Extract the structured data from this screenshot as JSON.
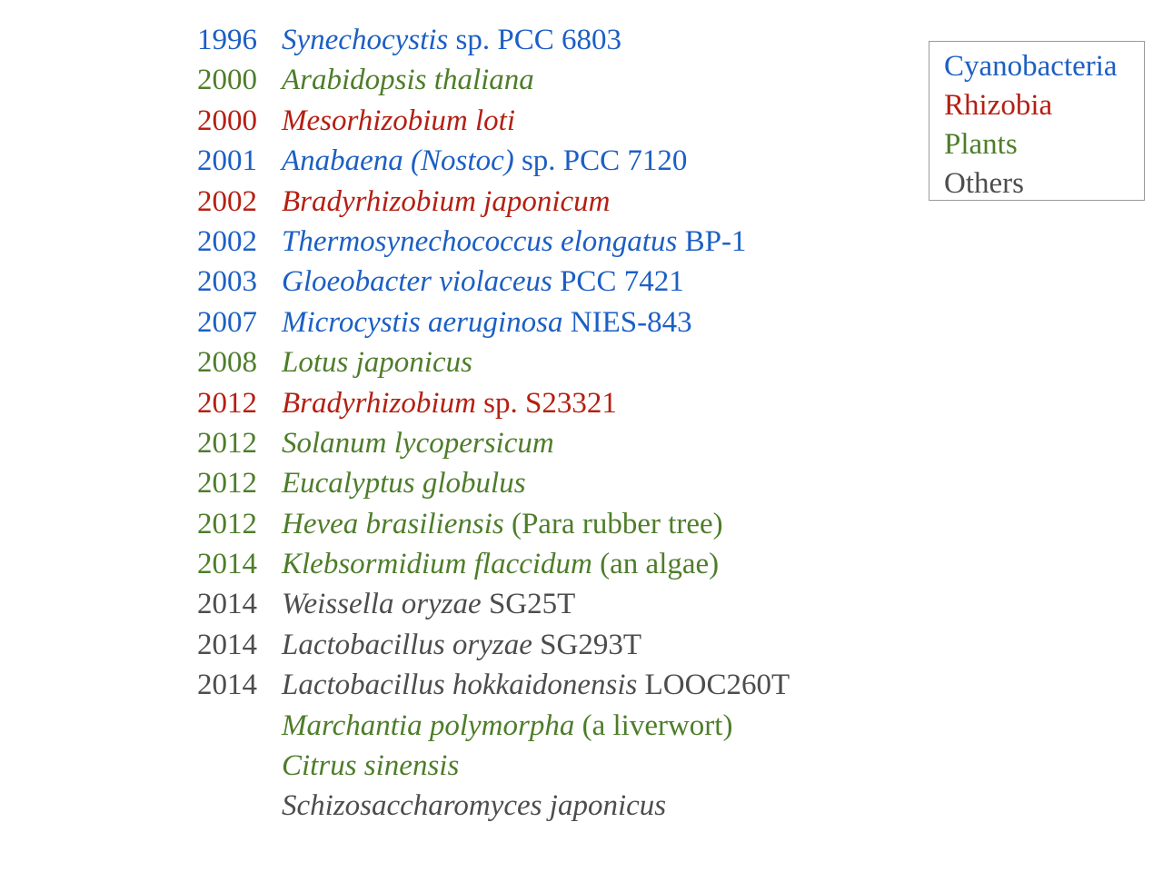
{
  "colors": {
    "cyanobacteria": "#1c5fc4",
    "rhizobia": "#b51f12",
    "plants": "#4e7d2a",
    "others": "#4d4d4d"
  },
  "legend": [
    {
      "label": "Cyanobacteria",
      "group": "cyanobacteria"
    },
    {
      "label": "Rhizobia",
      "group": "rhizobia"
    },
    {
      "label": "Plants",
      "group": "plants"
    },
    {
      "label": "Others",
      "group": "others"
    }
  ],
  "entries": [
    {
      "year": "1996",
      "group": "cyanobacteria",
      "parts": [
        {
          "t": "Synechocystis",
          "i": true
        },
        {
          "t": " sp. PCC 6803",
          "i": false
        }
      ]
    },
    {
      "year": "2000",
      "group": "plants",
      "parts": [
        {
          "t": "Arabidopsis thaliana",
          "i": true
        }
      ]
    },
    {
      "year": "2000",
      "group": "rhizobia",
      "parts": [
        {
          "t": "Mesorhizobium loti",
          "i": true
        }
      ]
    },
    {
      "year": "2001",
      "group": "cyanobacteria",
      "parts": [
        {
          "t": "Anabaena (Nostoc)",
          "i": true
        },
        {
          "t": " sp. PCC 7120",
          "i": false
        }
      ]
    },
    {
      "year": "2002",
      "group": "rhizobia",
      "parts": [
        {
          "t": "Bradyrhizobium japonicum",
          "i": true
        }
      ]
    },
    {
      "year": "2002",
      "group": "cyanobacteria",
      "parts": [
        {
          "t": "Thermosynechococcus elongatus",
          "i": true
        },
        {
          "t": " BP-1",
          "i": false
        }
      ]
    },
    {
      "year": "2003",
      "group": "cyanobacteria",
      "parts": [
        {
          "t": "Gloeobacter violaceus",
          "i": true
        },
        {
          "t": " PCC 7421",
          "i": false
        }
      ]
    },
    {
      "year": "2007",
      "group": "cyanobacteria",
      "parts": [
        {
          "t": "Microcystis aeruginosa",
          "i": true
        },
        {
          "t": " NIES-843",
          "i": false
        }
      ]
    },
    {
      "year": "2008",
      "group": "plants",
      "parts": [
        {
          "t": "Lotus japonicus",
          "i": true
        }
      ]
    },
    {
      "year": "2012",
      "group": "rhizobia",
      "parts": [
        {
          "t": "Bradyrhizobium",
          "i": true
        },
        {
          "t": " sp. S23321",
          "i": false
        }
      ]
    },
    {
      "year": "2012",
      "group": "plants",
      "parts": [
        {
          "t": "Solanum lycopersicum",
          "i": true
        }
      ]
    },
    {
      "year": "2012",
      "group": "plants",
      "parts": [
        {
          "t": "Eucalyptus globulus",
          "i": true
        }
      ]
    },
    {
      "year": "2012",
      "group": "plants",
      "parts": [
        {
          "t": "Hevea brasiliensis",
          "i": true
        },
        {
          "t": " (Para rubber tree)",
          "i": false
        }
      ]
    },
    {
      "year": "2014",
      "group": "plants",
      "parts": [
        {
          "t": "Klebsormidium flaccidum",
          "i": true
        },
        {
          "t": " (an algae)",
          "i": false
        }
      ]
    },
    {
      "year": "2014",
      "group": "others",
      "parts": [
        {
          "t": "Weissella oryzae",
          "i": true
        },
        {
          "t": " SG25T",
          "i": false
        }
      ]
    },
    {
      "year": "2014",
      "group": "others",
      "parts": [
        {
          "t": "Lactobacillus oryzae",
          "i": true
        },
        {
          "t": " SG293T",
          "i": false
        }
      ]
    },
    {
      "year": "2014",
      "group": "others",
      "parts": [
        {
          "t": "Lactobacillus hokkaidonensis",
          "i": true
        },
        {
          "t": " LOOC260T",
          "i": false
        }
      ]
    },
    {
      "year": "",
      "group": "plants",
      "parts": [
        {
          "t": "Marchantia polymorpha",
          "i": true
        },
        {
          "t": " (a liverwort)",
          "i": false
        }
      ]
    },
    {
      "year": "",
      "group": "plants",
      "parts": [
        {
          "t": "Citrus sinensis",
          "i": true
        }
      ]
    },
    {
      "year": "",
      "group": "others",
      "parts": [
        {
          "t": "Schizosaccharomyces japonicus",
          "i": true
        }
      ]
    }
  ]
}
